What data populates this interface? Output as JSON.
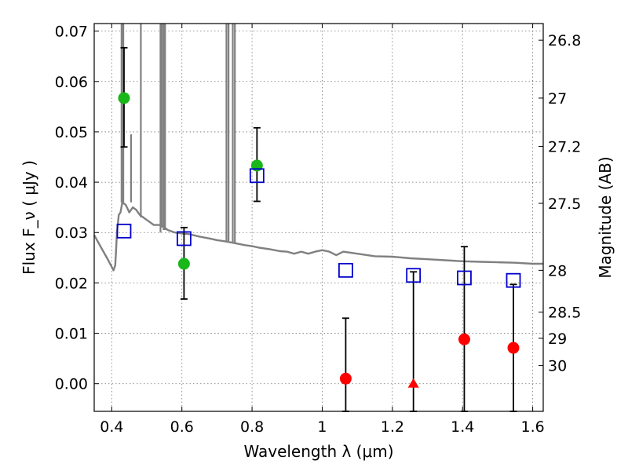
{
  "chart_data": {
    "type": "scatter",
    "title": "",
    "xlabel": "Wavelength  λ (μm)",
    "ylabel": "Flux  F_ν ( μJy )",
    "ylabel_right": "Magnitude (AB)",
    "xlim": [
      0.35,
      1.63
    ],
    "ylim": [
      -0.0055,
      0.0715
    ],
    "grid": true,
    "x_ticks": [
      0.4,
      0.6,
      0.8,
      1.0,
      1.2,
      1.4,
      1.6
    ],
    "x_tick_labels": [
      "0.4",
      "0.6",
      "0.8",
      "1",
      "1.2",
      "1.4",
      "1.6"
    ],
    "y_ticks": [
      0.0,
      0.01,
      0.02,
      0.03,
      0.04,
      0.05,
      0.06,
      0.07
    ],
    "y_tick_labels": [
      "0.00",
      "0.01",
      "0.02",
      "0.03",
      "0.04",
      "0.05",
      "0.06",
      "0.07"
    ],
    "mag_ticks": [
      {
        "flux": 0.0682,
        "label": "26.8"
      },
      {
        "flux": 0.0567,
        "label": "27"
      },
      {
        "flux": 0.0471,
        "label": "27.2"
      },
      {
        "flux": 0.0358,
        "label": "27.5"
      },
      {
        "flux": 0.0225,
        "label": "28"
      },
      {
        "flux": 0.0142,
        "label": "28.5"
      },
      {
        "flux": 0.009,
        "label": "29"
      },
      {
        "flux": 0.0036,
        "label": "30"
      }
    ],
    "model_spectrum": {
      "color": "#808080",
      "x": [
        0.35,
        0.37,
        0.39,
        0.405,
        0.41,
        0.412,
        0.415,
        0.42,
        0.425,
        0.43,
        0.44,
        0.45,
        0.46,
        0.47,
        0.48,
        0.49,
        0.5,
        0.52,
        0.54,
        0.56,
        0.58,
        0.6,
        0.62,
        0.65,
        0.68,
        0.7,
        0.72,
        0.75,
        0.78,
        0.8,
        0.82,
        0.85,
        0.88,
        0.9,
        0.92,
        0.94,
        0.96,
        0.98,
        1.0,
        1.02,
        1.04,
        1.06,
        1.1,
        1.15,
        1.2,
        1.25,
        1.3,
        1.35,
        1.4,
        1.45,
        1.5,
        1.55,
        1.6,
        1.63
      ],
      "y": [
        0.0295,
        0.027,
        0.0245,
        0.0225,
        0.0235,
        0.026,
        0.03,
        0.0335,
        0.034,
        0.036,
        0.0355,
        0.034,
        0.035,
        0.0345,
        0.0335,
        0.033,
        0.0325,
        0.0315,
        0.0315,
        0.0305,
        0.03,
        0.0298,
        0.0297,
        0.0292,
        0.0288,
        0.0285,
        0.0283,
        0.0279,
        0.0275,
        0.0273,
        0.027,
        0.0267,
        0.0263,
        0.0262,
        0.0258,
        0.0262,
        0.0258,
        0.0262,
        0.0265,
        0.0262,
        0.0255,
        0.0262,
        0.0258,
        0.0253,
        0.0252,
        0.0249,
        0.0247,
        0.0245,
        0.0243,
        0.0242,
        0.0241,
        0.024,
        0.0238,
        0.0238
      ]
    },
    "model_spikes": [
      {
        "x": 0.428,
        "ytop": 0.0715,
        "ybottom": 0.036
      },
      {
        "x": 0.433,
        "ytop": 0.0715,
        "ybottom": 0.036
      },
      {
        "x": 0.455,
        "ytop": 0.0495,
        "ybottom": 0.036
      },
      {
        "x": 0.483,
        "ytop": 0.0715,
        "ybottom": 0.033
      },
      {
        "x": 0.539,
        "ytop": 0.0715,
        "ybottom": 0.03
      },
      {
        "x": 0.543,
        "ytop": 0.0715,
        "ybottom": 0.031
      },
      {
        "x": 0.548,
        "ytop": 0.0715,
        "ybottom": 0.0305
      },
      {
        "x": 0.552,
        "ytop": 0.0715,
        "ybottom": 0.0305
      },
      {
        "x": 0.727,
        "ytop": 0.0715,
        "ybottom": 0.0283
      },
      {
        "x": 0.733,
        "ytop": 0.0715,
        "ybottom": 0.0283
      },
      {
        "x": 0.745,
        "ytop": 0.0715,
        "ybottom": 0.028
      },
      {
        "x": 0.751,
        "ytop": 0.0715,
        "ybottom": 0.028
      }
    ],
    "series": [
      {
        "marker": "circle",
        "color": "#19b719",
        "points": [
          {
            "x": 0.435,
            "y": 0.0567,
            "ylo": 0.047,
            "yhi": 0.0667
          },
          {
            "x": 0.606,
            "y": 0.0238,
            "ylo": 0.0168,
            "yhi": 0.031
          },
          {
            "x": 0.814,
            "y": 0.0433,
            "ylo": 0.0362,
            "yhi": 0.0508
          }
        ]
      },
      {
        "marker": "circle",
        "color": "#ff0000",
        "points": [
          {
            "x": 1.067,
            "y": 0.001,
            "ylo": -0.0055,
            "yhi": 0.013
          },
          {
            "x": 1.405,
            "y": 0.0088,
            "ylo": -0.0055,
            "yhi": 0.0272
          },
          {
            "x": 1.545,
            "y": 0.0071,
            "ylo": -0.0055,
            "yhi": 0.0197
          }
        ]
      },
      {
        "marker": "triangle",
        "color": "#ff0000",
        "points": [
          {
            "x": 1.26,
            "y": 0.0,
            "ylo": -0.0055,
            "yhi": 0.0222
          }
        ]
      },
      {
        "marker": "square",
        "color": "#0000cc",
        "points": [
          {
            "x": 0.435,
            "y": 0.0303
          },
          {
            "x": 0.606,
            "y": 0.0288
          },
          {
            "x": 0.814,
            "y": 0.0413
          },
          {
            "x": 1.067,
            "y": 0.0225
          },
          {
            "x": 1.26,
            "y": 0.0215
          },
          {
            "x": 1.405,
            "y": 0.021
          },
          {
            "x": 1.545,
            "y": 0.0205
          }
        ]
      }
    ]
  }
}
